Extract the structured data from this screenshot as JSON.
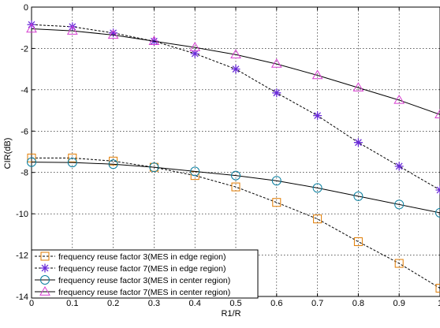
{
  "chart_data": {
    "type": "line",
    "xlabel": "R1/R",
    "ylabel": "CIR(dB)",
    "xlim": [
      0,
      1
    ],
    "ylim": [
      -14,
      0
    ],
    "x_ticks": [
      "0",
      "0.1",
      "0.2",
      "0.3",
      "0.4",
      "0.5",
      "0.6",
      "0.7",
      "0.8",
      "0.9",
      "1"
    ],
    "y_ticks": [
      "0",
      "-2",
      "-4",
      "-6",
      "-8",
      "-10",
      "-12",
      "-14"
    ],
    "grid": true,
    "legend_position": "bottom-left",
    "x": [
      0,
      0.1,
      0.2,
      0.3,
      0.4,
      0.5,
      0.6,
      0.7,
      0.8,
      0.9,
      1.0
    ],
    "series": [
      {
        "name": "frequency reuse factor 3(MES in edge region)",
        "line": "dashed",
        "marker": "square",
        "color": "#E07B00",
        "values": [
          -7.3,
          -7.3,
          -7.45,
          -7.75,
          -8.15,
          -8.7,
          -9.45,
          -10.25,
          -11.35,
          -12.4,
          -13.6
        ]
      },
      {
        "name": "frequency reuse factor 7(MES in edge region)",
        "line": "dashed",
        "marker": "star",
        "color": "#6A2BD9",
        "values": [
          -0.85,
          -0.95,
          -1.25,
          -1.65,
          -2.25,
          -3.0,
          -4.15,
          -5.25,
          -6.55,
          -7.7,
          -8.85
        ]
      },
      {
        "name": "frequency reuse factor 3(MES in center region)",
        "line": "solid",
        "marker": "circle",
        "color": "#0A7FA0",
        "values": [
          -7.5,
          -7.52,
          -7.6,
          -7.75,
          -7.95,
          -8.15,
          -8.4,
          -8.75,
          -9.15,
          -9.55,
          -9.95
        ]
      },
      {
        "name": "frequency reuse factor 7(MES in center region)",
        "line": "solid",
        "marker": "triangle",
        "color": "#D63ED0",
        "values": [
          -1.05,
          -1.15,
          -1.35,
          -1.65,
          -1.95,
          -2.3,
          -2.75,
          -3.3,
          -3.9,
          -4.5,
          -5.2
        ]
      }
    ]
  }
}
